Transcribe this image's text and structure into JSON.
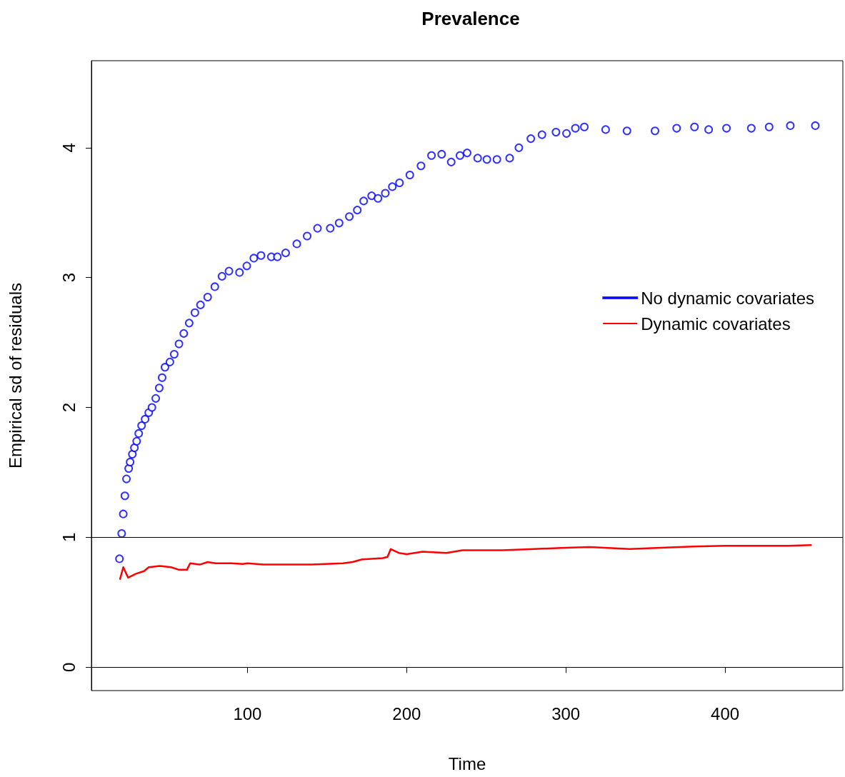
{
  "chart_data": {
    "type": "scatter",
    "title": "Prevalence",
    "xlabel": "Time",
    "ylabel": "Empirical sd of residuals",
    "xlim": [
      2,
      474
    ],
    "xticks": [
      100,
      200,
      300,
      400
    ],
    "ylim": [
      -0.18,
      4.67
    ],
    "yticks": [
      0,
      1,
      2,
      3,
      4
    ],
    "grid": false,
    "legend": "right",
    "ref_lines": [
      {
        "axis": "y",
        "value": 0,
        "label": null,
        "color": "#000000"
      },
      {
        "axis": "y",
        "value": 1,
        "label": null,
        "color": "#000000"
      }
    ],
    "series": [
      {
        "name": "No dynamic covariates",
        "color": "#0000ff",
        "marker": "circle",
        "x": [
          19.6,
          21,
          22,
          23,
          24,
          25.4,
          26.3,
          27.7,
          29,
          30.4,
          31.7,
          33.5,
          35.7,
          38,
          40,
          42.4,
          44.6,
          46.4,
          48.2,
          51.3,
          54,
          57,
          60,
          63.4,
          67,
          70.5,
          75,
          79.5,
          84,
          88.4,
          95,
          99.6,
          104,
          108.5,
          115,
          118.8,
          124,
          131,
          137.5,
          144,
          152,
          157.6,
          164,
          169,
          173,
          178,
          182,
          186.6,
          191,
          195.5,
          202,
          209,
          215.6,
          222,
          228,
          233.5,
          238,
          244.6,
          250.4,
          256.7,
          264.7,
          270.5,
          278,
          285,
          293.8,
          300.4,
          306,
          311.6,
          325,
          338.4,
          356,
          369.6,
          380.8,
          389.7,
          400.9,
          416.5,
          427.7,
          441,
          456.7
        ],
        "values": [
          0.835,
          1.03,
          1.18,
          1.32,
          1.45,
          1.53,
          1.58,
          1.64,
          1.69,
          1.74,
          1.8,
          1.86,
          1.91,
          1.96,
          2.0,
          2.07,
          2.15,
          2.23,
          2.31,
          2.35,
          2.41,
          2.49,
          2.57,
          2.65,
          2.73,
          2.79,
          2.85,
          2.93,
          3.01,
          3.05,
          3.04,
          3.09,
          3.15,
          3.17,
          3.16,
          3.16,
          3.19,
          3.26,
          3.32,
          3.38,
          3.38,
          3.42,
          3.47,
          3.52,
          3.59,
          3.63,
          3.61,
          3.65,
          3.7,
          3.73,
          3.79,
          3.86,
          3.94,
          3.95,
          3.89,
          3.94,
          3.96,
          3.92,
          3.91,
          3.91,
          3.92,
          4.0,
          4.07,
          4.1,
          4.12,
          4.11,
          4.15,
          4.16,
          4.14,
          4.13,
          4.13,
          4.15,
          4.16,
          4.14,
          4.15,
          4.15,
          4.16,
          4.17,
          4.17
        ]
      },
      {
        "name": "Dynamic covariates",
        "color": "#ff0000",
        "type": "line",
        "marker": "none",
        "line_style": "solid",
        "x": [
          20,
          22,
          25,
          30,
          35,
          38,
          45,
          52,
          57,
          62,
          64,
          70,
          75,
          80,
          90,
          97,
          100,
          110,
          130,
          140,
          160,
          166,
          172,
          185,
          188,
          190,
          195,
          200,
          210,
          225,
          235,
          260,
          280,
          300,
          315,
          340,
          360,
          380,
          400,
          440,
          454
        ],
        "values": [
          0.68,
          0.77,
          0.69,
          0.72,
          0.74,
          0.77,
          0.78,
          0.77,
          0.75,
          0.75,
          0.8,
          0.79,
          0.81,
          0.8,
          0.8,
          0.795,
          0.8,
          0.79,
          0.79,
          0.79,
          0.8,
          0.81,
          0.83,
          0.84,
          0.85,
          0.91,
          0.88,
          0.87,
          0.89,
          0.88,
          0.9,
          0.9,
          0.91,
          0.92,
          0.925,
          0.91,
          0.92,
          0.93,
          0.935,
          0.935,
          0.94
        ]
      }
    ]
  }
}
